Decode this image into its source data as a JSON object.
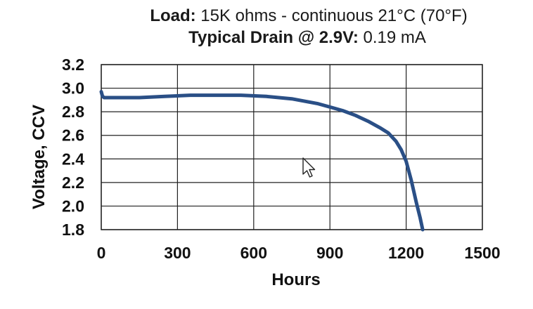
{
  "header": {
    "line1_bold": "Load:",
    "line1_rest": " 15K ohms - continuous  21°C (70°F)",
    "line2_bold": "Typical Drain @ 2.9V:",
    "line2_rest": " 0.19 mA"
  },
  "chart_data": {
    "type": "line",
    "xlabel": "Hours",
    "ylabel": "Voltage, CCV",
    "xlim": [
      0,
      1500
    ],
    "ylim": [
      1.8,
      3.2
    ],
    "xticks": [
      "0",
      "300",
      "600",
      "900",
      "1200",
      "1500"
    ],
    "yticks": [
      "3.2",
      "3.0",
      "2.8",
      "2.6",
      "2.4",
      "2.2",
      "2.0",
      "1.8"
    ],
    "grid": true,
    "series": [
      {
        "color": "#2a4f86",
        "x": [
          0,
          5,
          12,
          50,
          150,
          250,
          350,
          450,
          550,
          650,
          750,
          850,
          900,
          950,
          1000,
          1050,
          1100,
          1130,
          1160,
          1180,
          1200,
          1220,
          1240,
          1255,
          1265
        ],
        "y": [
          2.97,
          2.93,
          2.92,
          2.92,
          2.92,
          2.93,
          2.94,
          2.94,
          2.94,
          2.93,
          2.91,
          2.87,
          2.84,
          2.81,
          2.77,
          2.72,
          2.66,
          2.62,
          2.55,
          2.48,
          2.38,
          2.22,
          2.03,
          1.9,
          1.8
        ]
      }
    ]
  },
  "cursor": {
    "icon": "mouse-pointer-icon"
  }
}
